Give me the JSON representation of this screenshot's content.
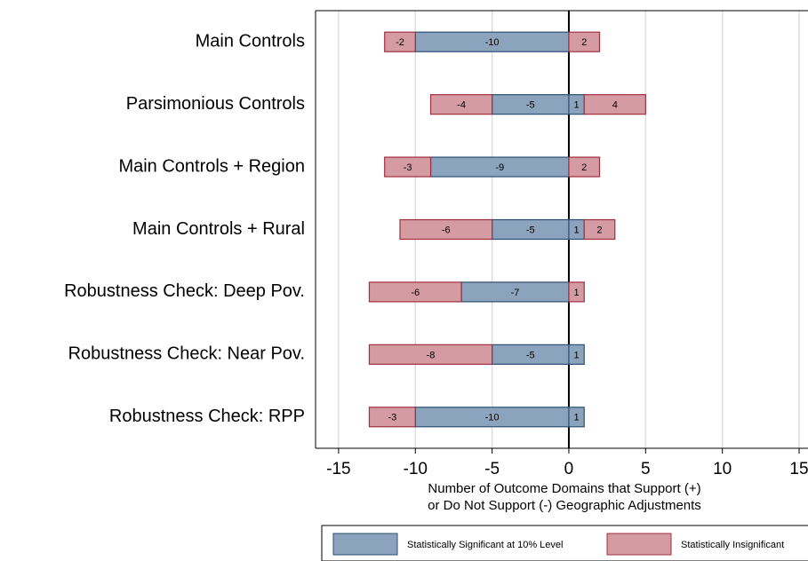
{
  "chart_data": {
    "type": "diverging_bar",
    "categories": [
      "Main Controls",
      "Parsimonious Controls",
      "Main Controls + Region",
      "Main Controls + Rural",
      "Robustness Check: Deep Pov.",
      "Robustness Check: Near Pov.",
      "Robustness Check: RPP"
    ],
    "series": [
      {
        "name": "Statistically Significant at 10% Level",
        "color": "#8ba3bd",
        "negative_values": [
          -10,
          -5,
          -9,
          -5,
          -7,
          -5,
          -10
        ],
        "positive_values": [
          null,
          1,
          null,
          1,
          null,
          1,
          1
        ]
      },
      {
        "name": "Statistically Insignificant",
        "color": "#d49ba2",
        "negative_values": [
          -2,
          -4,
          -3,
          -6,
          -6,
          -8,
          -3
        ],
        "positive_values": [
          2,
          4,
          2,
          2,
          1,
          null,
          null
        ]
      }
    ],
    "x_label": [
      "Number of Outcome Domains that Support (+)",
      "or Do Not Support (-) Geographic Adjustments"
    ],
    "xlim": [
      -16.5,
      16.1
    ],
    "xticks": [
      -15,
      -10,
      -5,
      0,
      5,
      10,
      15
    ],
    "grid": true
  }
}
